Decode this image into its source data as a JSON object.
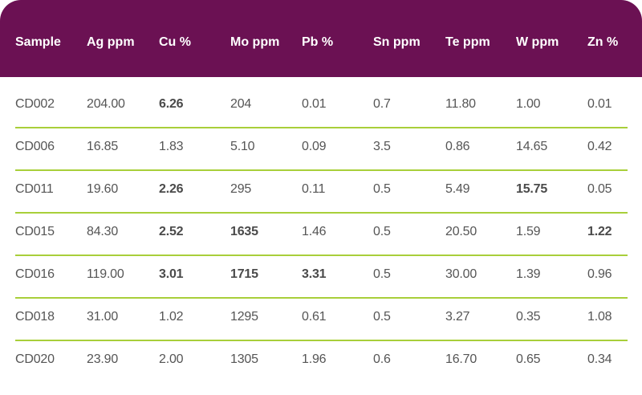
{
  "chart_data": {
    "type": "table",
    "columns": [
      "Sample",
      "Ag ppm",
      "Cu %",
      "Mo ppm",
      "Pb %",
      "Sn ppm",
      "Te ppm",
      "W ppm",
      "Zn %"
    ],
    "rows": [
      {
        "cells": [
          "CD002",
          "204.00",
          "6.26",
          "204",
          "0.01",
          "0.7",
          "11.80",
          "1.00",
          "0.01"
        ],
        "bold": [
          false,
          false,
          true,
          false,
          false,
          false,
          false,
          false,
          false
        ]
      },
      {
        "cells": [
          "CD006",
          "16.85",
          "1.83",
          "5.10",
          "0.09",
          "3.5",
          "0.86",
          "14.65",
          "0.42"
        ],
        "bold": [
          false,
          false,
          false,
          false,
          false,
          false,
          false,
          false,
          false
        ]
      },
      {
        "cells": [
          "CD011",
          "19.60",
          "2.26",
          "295",
          "0.11",
          "0.5",
          "5.49",
          "15.75",
          "0.05"
        ],
        "bold": [
          false,
          false,
          true,
          false,
          false,
          false,
          false,
          true,
          false
        ]
      },
      {
        "cells": [
          "CD015",
          "84.30",
          "2.52",
          "1635",
          "1.46",
          "0.5",
          "20.50",
          "1.59",
          "1.22"
        ],
        "bold": [
          false,
          false,
          true,
          true,
          false,
          false,
          false,
          false,
          true
        ]
      },
      {
        "cells": [
          "CD016",
          "119.00",
          "3.01",
          "1715",
          "3.31",
          "0.5",
          "30.00",
          "1.39",
          "0.96"
        ],
        "bold": [
          false,
          false,
          true,
          true,
          true,
          false,
          false,
          false,
          false
        ]
      },
      {
        "cells": [
          "CD018",
          "31.00",
          "1.02",
          "1295",
          "0.61",
          "0.5",
          "3.27",
          "0.35",
          "1.08"
        ],
        "bold": [
          false,
          false,
          false,
          false,
          false,
          false,
          false,
          false,
          false
        ]
      },
      {
        "cells": [
          "CD020",
          "23.90",
          "2.00",
          "1305",
          "1.96",
          "0.6",
          "16.70",
          "0.65",
          "0.34"
        ],
        "bold": [
          false,
          false,
          false,
          false,
          false,
          false,
          false,
          false,
          false
        ]
      }
    ]
  },
  "colors": {
    "header_background": "#6b1153",
    "header_text": "#ffffff",
    "row_divider": "#a8cf3a",
    "cell_text": "#555555"
  }
}
